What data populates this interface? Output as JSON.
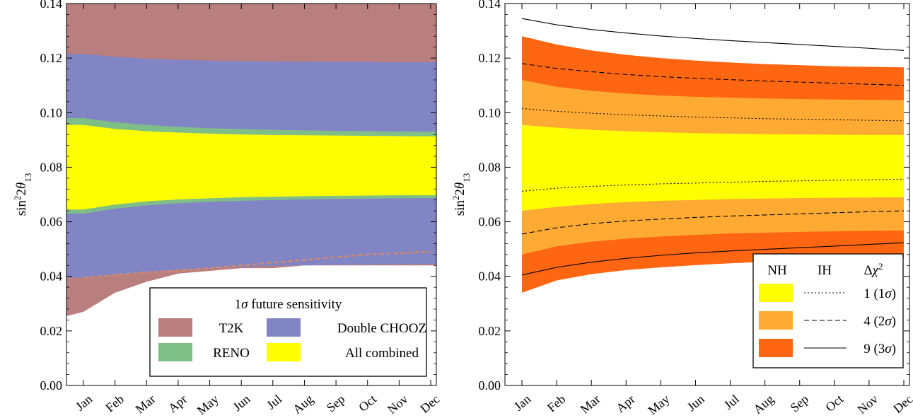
{
  "chart_data": [
    {
      "type": "area",
      "title": "",
      "xlabel": "",
      "ylabel": "sin²2θ₁₃",
      "ylabel_parts": {
        "base": "sin",
        "sup": "2",
        "mid": "2θ",
        "sub": "13"
      },
      "categories": [
        "Jan",
        "Feb",
        "Mar",
        "Apr",
        "May",
        "Jun",
        "Jul",
        "Aug",
        "Sep",
        "Oct",
        "Nov",
        "Dec"
      ],
      "ylim": [
        0.0,
        0.14
      ],
      "yticks": [
        "0.00",
        "0.02",
        "0.04",
        "0.06",
        "0.08",
        "0.10",
        "0.12",
        "0.14"
      ],
      "grid": false,
      "legend": {
        "placement": "bottom-right",
        "title": "1σ future sensitivity",
        "entries": [
          {
            "label": "T2K",
            "color": "#b97e7e"
          },
          {
            "label": "Double CHOOZ",
            "color": "#8285c4"
          },
          {
            "label": "RENO",
            "color": "#7fbe87"
          },
          {
            "label": "All combined",
            "color": "#ffff00"
          }
        ]
      },
      "series": [
        {
          "name": "T2K",
          "color": "#b97e7e",
          "upper": [
            0.14,
            0.14,
            0.14,
            0.14,
            0.14,
            0.14,
            0.14,
            0.14,
            0.14,
            0.14,
            0.14,
            0.14
          ],
          "lower": [
            0.027,
            0.034,
            0.038,
            0.041,
            0.042,
            0.043,
            0.043,
            0.044,
            0.044,
            0.044,
            0.044,
            0.044
          ]
        },
        {
          "name": "Double CHOOZ",
          "color": "#8285c4",
          "upper": [
            0.1215,
            0.1205,
            0.1198,
            0.1194,
            0.1191,
            0.1189,
            0.1188,
            0.1187,
            0.1186,
            0.1186,
            0.1185,
            0.1185
          ],
          "lower": [
            0.0395,
            0.0405,
            0.0415,
            0.0425,
            0.043,
            0.0435,
            0.0438,
            0.044,
            0.0442,
            0.0443,
            0.0444,
            0.0445
          ]
        },
        {
          "name": "RENO",
          "color": "#7fbe87",
          "upper": [
            0.098,
            0.0965,
            0.0955,
            0.0948,
            0.0943,
            0.094,
            0.0937,
            0.0935,
            0.0933,
            0.0932,
            0.0931,
            0.093
          ],
          "lower": [
            0.063,
            0.0648,
            0.066,
            0.0668,
            0.0673,
            0.0677,
            0.068,
            0.0682,
            0.0684,
            0.0685,
            0.0686,
            0.0687
          ]
        },
        {
          "name": "All combined",
          "color": "#ffff00",
          "upper": [
            0.0955,
            0.094,
            0.0932,
            0.0927,
            0.0923,
            0.092,
            0.0918,
            0.0917,
            0.0916,
            0.0915,
            0.0914,
            0.0913
          ],
          "lower": [
            0.0645,
            0.0663,
            0.0675,
            0.0682,
            0.0686,
            0.069,
            0.0692,
            0.0694,
            0.0695,
            0.0696,
            0.0697,
            0.0697
          ]
        }
      ],
      "annotations": [
        {
          "type": "dashed-line",
          "color": "#d08a6e",
          "values": [
            0.0395,
            0.0405,
            0.0415,
            0.042,
            0.043,
            0.044,
            0.045,
            0.046,
            0.047,
            0.048,
            0.0485,
            0.049
          ]
        }
      ]
    },
    {
      "type": "area",
      "title": "",
      "xlabel": "",
      "ylabel": "sin²2θ₁₃",
      "ylabel_parts": {
        "base": "sin",
        "sup": "2",
        "mid": "2θ",
        "sub": "13"
      },
      "categories": [
        "Jan",
        "Feb",
        "Mar",
        "Apr",
        "May",
        "Jun",
        "Jul",
        "Aug",
        "Sep",
        "Oct",
        "Nov",
        "Dec"
      ],
      "ylim": [
        0.0,
        0.14
      ],
      "yticks": [
        "0.00",
        "0.02",
        "0.04",
        "0.06",
        "0.08",
        "0.10",
        "0.12",
        "0.14"
      ],
      "grid": false,
      "legend": {
        "placement": "bottom-right",
        "headers": {
          "nh": "NH",
          "ih": "IH",
          "dchi": "Δχ",
          "dchi_sup": "2"
        },
        "entries": [
          {
            "label": "1 (1σ)",
            "color": "#ffff00",
            "dash": "dotted"
          },
          {
            "label": "4 (2σ)",
            "color": "#ffaa33",
            "dash": "dashed"
          },
          {
            "label": "9 (3σ)",
            "color": "#ff6611",
            "dash": "solid"
          }
        ]
      },
      "series": [
        {
          "name": "9 (3σ)",
          "color": "#ff6611",
          "upper": [
            0.128,
            0.125,
            0.1228,
            0.1212,
            0.12,
            0.1191,
            0.1184,
            0.1178,
            0.1174,
            0.117,
            0.1168,
            0.1166
          ],
          "lower": [
            0.034,
            0.0385,
            0.0408,
            0.0423,
            0.0433,
            0.0441,
            0.0448,
            0.0453,
            0.0457,
            0.046,
            0.0463,
            0.0465
          ]
        },
        {
          "name": "4 (2σ)",
          "color": "#ffaa33",
          "upper": [
            0.112,
            0.1095,
            0.108,
            0.107,
            0.1063,
            0.1058,
            0.1055,
            0.1052,
            0.105,
            0.1048,
            0.1047,
            0.1046
          ],
          "lower": [
            0.048,
            0.051,
            0.0527,
            0.0538,
            0.0546,
            0.0552,
            0.0557,
            0.056,
            0.0563,
            0.0565,
            0.0567,
            0.0568
          ]
        },
        {
          "name": "1 (1σ)",
          "color": "#ffff00",
          "upper": [
            0.0955,
            0.0945,
            0.0937,
            0.0932,
            0.0928,
            0.0925,
            0.0923,
            0.0921,
            0.092,
            0.0919,
            0.0918,
            0.0918
          ],
          "lower": [
            0.064,
            0.0655,
            0.0665,
            0.0672,
            0.0677,
            0.068,
            0.0683,
            0.0685,
            0.0687,
            0.0688,
            0.0689,
            0.069
          ]
        }
      ],
      "ih_lines": [
        {
          "name": "1 (1σ)",
          "dash": "dotted",
          "upper": [
            0.1015,
            0.1005,
            0.0998,
            0.0992,
            0.0988,
            0.0984,
            0.0981,
            0.0978,
            0.0976,
            0.0974,
            0.0972,
            0.097
          ],
          "lower": [
            0.0712,
            0.0723,
            0.073,
            0.0735,
            0.0739,
            0.0742,
            0.0745,
            0.0748,
            0.075,
            0.0752,
            0.0754,
            0.0756
          ]
        },
        {
          "name": "4 (2σ)",
          "dash": "dashed",
          "upper": [
            0.118,
            0.1162,
            0.115,
            0.114,
            0.1132,
            0.1126,
            0.1121,
            0.1116,
            0.1112,
            0.1108,
            0.1104,
            0.11
          ],
          "lower": [
            0.0555,
            0.0578,
            0.0593,
            0.0603,
            0.061,
            0.0616,
            0.0621,
            0.0625,
            0.0629,
            0.0633,
            0.0637,
            0.064
          ]
        },
        {
          "name": "9 (3σ)",
          "dash": "solid",
          "upper": [
            0.1345,
            0.1322,
            0.1305,
            0.1292,
            0.1281,
            0.1272,
            0.1264,
            0.1257,
            0.125,
            0.1243,
            0.1236,
            0.1228
          ],
          "lower": [
            0.0405,
            0.0433,
            0.0452,
            0.0466,
            0.0477,
            0.0486,
            0.0493,
            0.0499,
            0.0505,
            0.0511,
            0.0517,
            0.0523
          ]
        }
      ]
    }
  ]
}
